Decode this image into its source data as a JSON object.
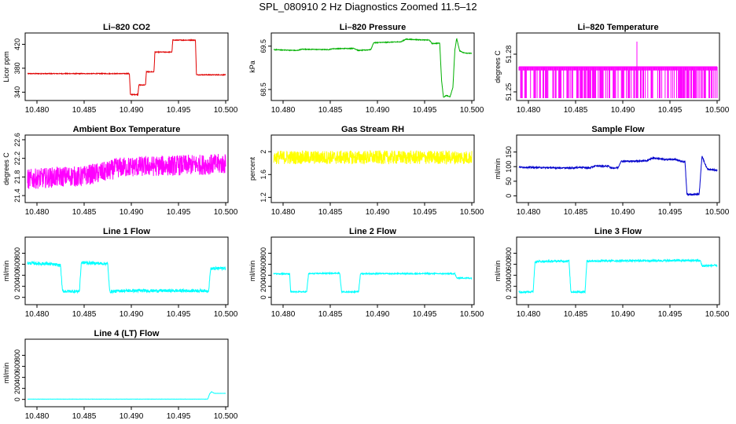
{
  "page": {
    "title": "SPL_080910  2 Hz Diagnostics Zoomed 11.5–12"
  },
  "chart_data": [
    {
      "type": "line",
      "title": "Li–820 CO2",
      "ylabel": "Licor ppm",
      "color": "#e00000",
      "xlim": [
        10.479,
        10.5
      ],
      "ylim": [
        330,
        435
      ],
      "x_ticks": [
        "10.480",
        "10.485",
        "10.490",
        "10.495",
        "10.500"
      ],
      "y_ticks": [
        340,
        380,
        420
      ],
      "series": [
        {
          "noise": 0.6,
          "points": [
            [
              10.479,
              371
            ],
            [
              10.4898,
              371
            ],
            [
              10.4899,
              336
            ],
            [
              10.4907,
              336
            ],
            [
              10.4908,
              352
            ],
            [
              10.4915,
              352
            ],
            [
              10.4916,
              374
            ],
            [
              10.4924,
              374
            ],
            [
              10.4925,
              407
            ],
            [
              10.4943,
              407
            ],
            [
              10.4944,
              427
            ],
            [
              10.4968,
              427
            ],
            [
              10.4969,
              369
            ],
            [
              10.5,
              369
            ]
          ]
        }
      ]
    },
    {
      "type": "line",
      "title": "Li–820 Pressure",
      "ylabel": "kPa",
      "color": "#00b000",
      "xlim": [
        10.479,
        10.5
      ],
      "ylim": [
        68.3,
        69.75
      ],
      "x_ticks": [
        "10.480",
        "10.485",
        "10.490",
        "10.495",
        "10.500"
      ],
      "y_ticks": [
        68.5,
        69.5
      ],
      "series": [
        {
          "noise": 0.008,
          "points": [
            [
              10.479,
              69.42
            ],
            [
              10.4815,
              69.4
            ],
            [
              10.482,
              69.43
            ],
            [
              10.4848,
              69.42
            ],
            [
              10.4852,
              69.44
            ],
            [
              10.4875,
              69.45
            ],
            [
              10.488,
              69.4
            ],
            [
              10.4893,
              69.42
            ],
            [
              10.4896,
              69.58
            ],
            [
              10.4925,
              69.6
            ],
            [
              10.493,
              69.66
            ],
            [
              10.4955,
              69.64
            ],
            [
              10.4958,
              69.56
            ],
            [
              10.4966,
              69.57
            ],
            [
              10.4968,
              68.7
            ],
            [
              10.497,
              68.32
            ],
            [
              10.4973,
              68.36
            ],
            [
              10.4977,
              68.33
            ],
            [
              10.498,
              68.55
            ],
            [
              10.4982,
              69.4
            ],
            [
              10.4984,
              69.68
            ],
            [
              10.4987,
              69.4
            ],
            [
              10.4991,
              69.35
            ],
            [
              10.5,
              69.33
            ]
          ]
        }
      ]
    },
    {
      "type": "line",
      "title": "Li–820 Temperature",
      "ylabel": "degrees C",
      "color": "#ff00ff",
      "xlim": [
        10.479,
        10.5
      ],
      "ylim": [
        51.245,
        51.295
      ],
      "x_ticks": [
        "10.480",
        "10.485",
        "10.490",
        "10.495",
        "10.500"
      ],
      "y_ticks": [
        51.25,
        51.28
      ],
      "toggle": {
        "low": 51.245,
        "high": 51.27,
        "spike_x": 10.4915,
        "spike_y": 51.29
      },
      "series": []
    },
    {
      "type": "line",
      "title": "Ambient Box Temperature",
      "ylabel": "degrees C",
      "color": "#ff00ff",
      "xlim": [
        10.479,
        10.5
      ],
      "ylim": [
        21.3,
        22.65
      ],
      "x_ticks": [
        "10.480",
        "10.485",
        "10.490",
        "10.495",
        "10.500"
      ],
      "y_ticks": [
        21.4,
        21.8,
        22.2,
        22.6
      ],
      "series": [
        {
          "noise": 0.22,
          "points": [
            [
              10.479,
              21.75
            ],
            [
              10.4835,
              21.82
            ],
            [
              10.4845,
              21.8
            ],
            [
              10.4855,
              21.85
            ],
            [
              10.4875,
              21.92
            ],
            [
              10.4885,
              22.0
            ],
            [
              10.49,
              22.02
            ],
            [
              10.495,
              22.05
            ],
            [
              10.5,
              22.08
            ]
          ]
        }
      ]
    },
    {
      "type": "line",
      "title": "Gas Stream RH",
      "ylabel": "percent",
      "color": "#ffff00",
      "xlim": [
        10.479,
        10.5
      ],
      "ylim": [
        1.15,
        2.25
      ],
      "x_ticks": [
        "10.480",
        "10.485",
        "10.490",
        "10.495",
        "10.500"
      ],
      "y_ticks": [
        1.2,
        1.6,
        2.0
      ],
      "series": [
        {
          "noise": 0.12,
          "points": [
            [
              10.479,
              1.9
            ],
            [
              10.5,
              1.9
            ]
          ]
        }
      ]
    },
    {
      "type": "line",
      "title": "Sample Flow",
      "ylabel": "ml/min",
      "color": "#0000cc",
      "xlim": [
        10.479,
        10.5
      ],
      "ylim": [
        -15,
        200
      ],
      "x_ticks": [
        "10.480",
        "10.485",
        "10.490",
        "10.495",
        "10.500"
      ],
      "y_ticks": [
        0,
        50,
        100,
        150
      ],
      "series": [
        {
          "noise": 2.5,
          "points": [
            [
              10.479,
              98
            ],
            [
              10.4845,
              95
            ],
            [
              10.4855,
              98
            ],
            [
              10.4865,
              95
            ],
            [
              10.487,
              102
            ],
            [
              10.4885,
              102
            ],
            [
              10.4888,
              95
            ],
            [
              10.4895,
              96
            ],
            [
              10.4898,
              118
            ],
            [
              10.4925,
              120
            ],
            [
              10.4932,
              130
            ],
            [
              10.4945,
              124
            ],
            [
              10.4955,
              125
            ],
            [
              10.4966,
              115
            ],
            [
              10.4968,
              5
            ],
            [
              10.4981,
              5
            ],
            [
              10.4984,
              138
            ],
            [
              10.4987,
              110
            ],
            [
              10.499,
              90
            ],
            [
              10.5,
              88
            ]
          ]
        }
      ]
    },
    {
      "type": "line",
      "title": "Line 1 Flow",
      "ylabel": "ml/min",
      "color": "#00ffff",
      "xlim": [
        10.479,
        10.5
      ],
      "ylim": [
        -90,
        1050
      ],
      "x_ticks": [
        "10.480",
        "10.485",
        "10.490",
        "10.495",
        "10.500"
      ],
      "y_ticks": [
        0,
        200,
        400,
        600,
        800
      ],
      "series": [
        {
          "noise": 28,
          "points": [
            [
              10.479,
              620
            ],
            [
              10.481,
              610
            ],
            [
              10.4825,
              580
            ],
            [
              10.4827,
              110
            ],
            [
              10.4845,
              110
            ],
            [
              10.4847,
              630
            ],
            [
              10.4875,
              610
            ],
            [
              10.4877,
              110
            ],
            [
              10.4885,
              110
            ],
            [
              10.4887,
              120
            ],
            [
              10.4982,
              120
            ],
            [
              10.4984,
              520
            ],
            [
              10.5,
              530
            ]
          ]
        }
      ]
    },
    {
      "type": "line",
      "title": "Line 2 Flow",
      "ylabel": "ml/min",
      "color": "#00ffff",
      "xlim": [
        10.479,
        10.5
      ],
      "ylim": [
        -90,
        1050
      ],
      "x_ticks": [
        "10.480",
        "10.485",
        "10.490",
        "10.495",
        "10.500"
      ],
      "y_ticks": [
        0,
        200,
        400,
        600,
        800
      ],
      "series": [
        {
          "noise": 10,
          "points": [
            [
              10.479,
              430
            ],
            [
              10.4807,
              425
            ],
            [
              10.4808,
              100
            ],
            [
              10.4825,
              100
            ],
            [
              10.4827,
              430
            ],
            [
              10.486,
              440
            ],
            [
              10.4862,
              100
            ],
            [
              10.488,
              100
            ],
            [
              10.4882,
              430
            ],
            [
              10.4982,
              430
            ],
            [
              10.4984,
              350
            ],
            [
              10.5,
              350
            ]
          ]
        }
      ]
    },
    {
      "type": "line",
      "title": "Line 3 Flow",
      "ylabel": "ml/min",
      "color": "#00ffff",
      "xlim": [
        10.479,
        10.5
      ],
      "ylim": [
        -90,
        1050
      ],
      "x_ticks": [
        "10.480",
        "10.485",
        "10.490",
        "10.495",
        "10.500"
      ],
      "y_ticks": [
        0,
        200,
        400,
        600,
        800
      ],
      "series": [
        {
          "noise": 18,
          "points": [
            [
              10.479,
              100
            ],
            [
              10.4805,
              100
            ],
            [
              10.4807,
              650
            ],
            [
              10.4843,
              660
            ],
            [
              10.4845,
              100
            ],
            [
              10.486,
              100
            ],
            [
              10.4862,
              660
            ],
            [
              10.4982,
              670
            ],
            [
              10.4984,
              570
            ],
            [
              10.5,
              580
            ]
          ]
        }
      ]
    },
    {
      "type": "line",
      "title": "Line 4 (LT) Flow",
      "ylabel": "ml/min",
      "color": "#00ffff",
      "xlim": [
        10.479,
        10.5
      ],
      "ylim": [
        -90,
        1050
      ],
      "x_ticks": [
        "10.480",
        "10.485",
        "10.490",
        "10.495",
        "10.500"
      ],
      "y_ticks": [
        0,
        200,
        400,
        600,
        800
      ],
      "series": [
        {
          "noise": 1.5,
          "points": [
            [
              10.479,
              5
            ],
            [
              10.4981,
              5
            ],
            [
              10.4983,
              100
            ],
            [
              10.4985,
              140
            ],
            [
              10.4988,
              110
            ],
            [
              10.5,
              110
            ]
          ]
        }
      ]
    }
  ]
}
